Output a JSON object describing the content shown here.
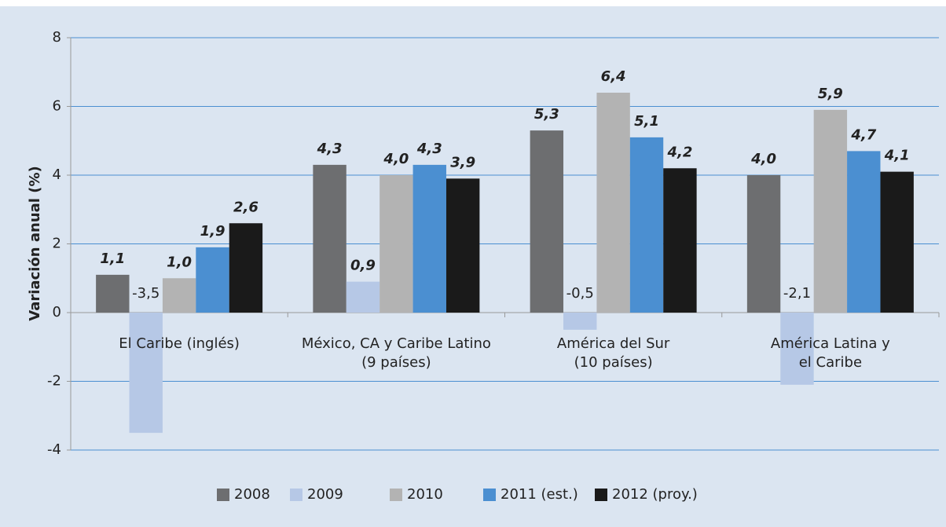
{
  "chart_data": {
    "type": "bar",
    "y_label": "Variación anual (%)",
    "categories": [
      "El Caribe (inglés)",
      "México, CA y Caribe Latino\n(9 países)",
      "América del Sur\n(10 países)",
      "América Latina y\nel Caribe"
    ],
    "series": [
      {
        "name": "2008",
        "color": "#6d6e70",
        "values": [
          1.1,
          4.3,
          5.3,
          4.0
        ],
        "value_labels": [
          "1,1",
          "4,3",
          "5,3",
          "4,0"
        ]
      },
      {
        "name": "2009",
        "color": "#b6c8e6",
        "values": [
          -3.5,
          0.9,
          -0.5,
          -2.1
        ],
        "value_labels": [
          "-3,5",
          "0,9",
          "-0,5",
          "-2,1"
        ]
      },
      {
        "name": "2010",
        "color": "#b3b3b3",
        "values": [
          1.0,
          4.0,
          6.4,
          5.9
        ],
        "value_labels": [
          "1,0",
          "4,0",
          "6,4",
          "5,9"
        ]
      },
      {
        "name": "2011 (est.)",
        "color": "#4b8fd1",
        "values": [
          1.9,
          4.3,
          5.1,
          4.7
        ],
        "value_labels": [
          "1,9",
          "4,3",
          "5,1",
          "4,7"
        ]
      },
      {
        "name": "2012 (proy.)",
        "color": "#1a1a1a",
        "values": [
          2.6,
          3.9,
          4.2,
          4.1
        ],
        "value_labels": [
          "2,6",
          "3,9",
          "4,2",
          "4,1"
        ]
      }
    ],
    "ylim": [
      -4,
      8
    ],
    "yticks": [
      8,
      6,
      4,
      2,
      0,
      -2,
      -4
    ],
    "grid": true,
    "legend": "bottom"
  }
}
